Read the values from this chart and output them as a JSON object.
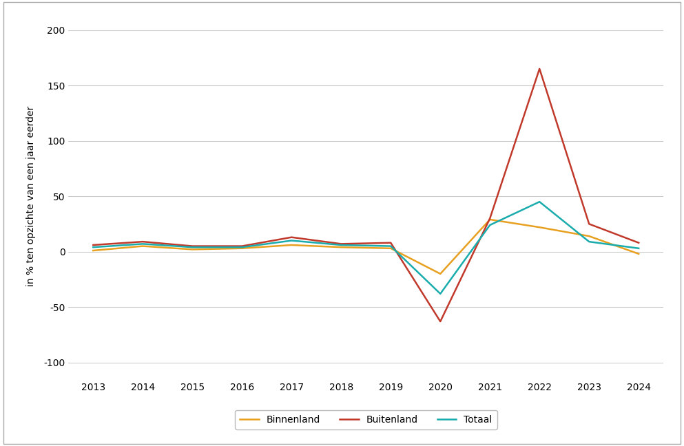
{
  "years": [
    2013,
    2014,
    2015,
    2016,
    2017,
    2018,
    2019,
    2020,
    2021,
    2022,
    2023,
    2024
  ],
  "binnenland": [
    1,
    5,
    2,
    3,
    6,
    4,
    3,
    -20,
    29,
    22,
    14,
    -2
  ],
  "buitenland": [
    6,
    9,
    5,
    5,
    13,
    7,
    8,
    -63,
    30,
    165,
    25,
    8
  ],
  "totaal": [
    4,
    7,
    4,
    4,
    10,
    6,
    5,
    -38,
    24,
    45,
    9,
    3
  ],
  "colors": {
    "binnenland": "#E8A020",
    "buitenland": "#C0392B",
    "totaal": "#1AACAC"
  },
  "ylabel": "in % ten opzichte van een jaar eerder",
  "ylim": [
    -115,
    215
  ],
  "yticks": [
    -100,
    -50,
    0,
    50,
    100,
    150,
    200
  ],
  "legend_labels": [
    "Binnenland",
    "Buitenland",
    "Totaal"
  ],
  "background_color": "#ffffff",
  "outer_border_color": "#cccccc",
  "grid_color": "#cccccc",
  "line_width": 1.8,
  "tick_fontsize": 10,
  "label_fontsize": 10
}
